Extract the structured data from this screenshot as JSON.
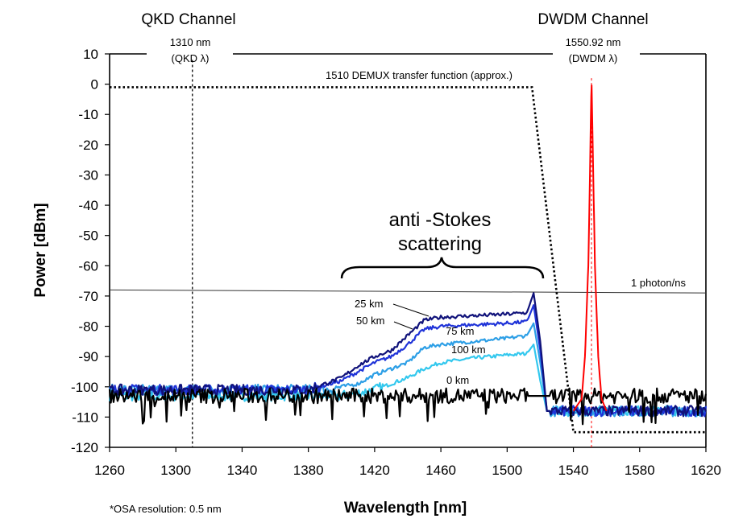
{
  "chart_data": {
    "type": "line",
    "xlabel": "Wavelength [nm]",
    "ylabel": "Power [dBm]",
    "xlim": [
      1260,
      1620
    ],
    "ylim": [
      -120,
      10
    ],
    "xticks": [
      1260,
      1300,
      1340,
      1380,
      1420,
      1460,
      1500,
      1540,
      1580,
      1620
    ],
    "yticks": [
      10,
      0,
      -10,
      -20,
      -30,
      -40,
      -50,
      -60,
      -70,
      -80,
      -90,
      -100,
      -110,
      -120
    ],
    "grid": false,
    "legend": "none",
    "channels": {
      "qkd_title": "QKD Channel",
      "qkd_wavelength": "1310 nm",
      "qkd_sub": "(QKD λ)",
      "qkd_line_x": 1310,
      "dwdm_title": "DWDM Channel",
      "dwdm_wavelength": "1550.92 nm",
      "dwdm_sub": "(DWDM λ)",
      "dwdm_line_x": 1550.92
    },
    "annotations": {
      "demux": "1510 DEMUX transfer function (approx.)",
      "antistokes_line1": "anti -Stokes",
      "antistokes_line2": "scattering",
      "photon": "1 photon/ns",
      "osa": "*OSA resolution: 0.5 nm"
    },
    "photon_level": {
      "x": [
        1260,
        1620
      ],
      "y": [
        -68,
        -69
      ]
    },
    "demux_curve": {
      "color": "#000000",
      "x": [
        1260,
        1515,
        1540,
        1620
      ],
      "y": [
        -1,
        -1,
        -115,
        -115
      ]
    },
    "series": [
      {
        "label": "25 km",
        "color": "#10127a",
        "x": [
          1260,
          1380,
          1400,
          1410,
          1420,
          1430,
          1440,
          1450,
          1460,
          1480,
          1500,
          1512,
          1516,
          1520,
          1524,
          1620
        ],
        "y": [
          -101,
          -101,
          -97,
          -93,
          -90,
          -88,
          -83,
          -78,
          -77,
          -76.5,
          -76,
          -75.5,
          -69,
          -85,
          -108,
          -108
        ]
      },
      {
        "label": "50 km",
        "color": "#1f33d8",
        "x": [
          1260,
          1380,
          1400,
          1410,
          1420,
          1430,
          1440,
          1450,
          1460,
          1480,
          1500,
          1512,
          1516,
          1520,
          1524,
          1620
        ],
        "y": [
          -101,
          -101,
          -98,
          -95,
          -92,
          -90,
          -86,
          -81,
          -80,
          -79.5,
          -79,
          -78.5,
          -73,
          -88,
          -108,
          -108
        ]
      },
      {
        "label": "75 km",
        "color": "#2d9fe6",
        "x": [
          1260,
          1390,
          1410,
          1420,
          1430,
          1440,
          1450,
          1460,
          1480,
          1500,
          1512,
          1516,
          1520,
          1524,
          1620
        ],
        "y": [
          -101,
          -101,
          -99,
          -96,
          -94,
          -92,
          -87,
          -86,
          -85,
          -84,
          -83,
          -79,
          -92,
          -108,
          -108
        ]
      },
      {
        "label": "100 km",
        "color": "#33c8ee",
        "x": [
          1260,
          1400,
          1420,
          1430,
          1440,
          1450,
          1460,
          1480,
          1500,
          1512,
          1516,
          1520,
          1524,
          1620
        ],
        "y": [
          -103,
          -103,
          -101,
          -99,
          -97,
          -94,
          -92,
          -90.5,
          -89.5,
          -89,
          -86,
          -98,
          -108,
          -108
        ]
      },
      {
        "label": "0 km",
        "color": "#000000",
        "x": [
          1260,
          1300,
          1340,
          1380,
          1420,
          1460,
          1500,
          1520,
          1620
        ],
        "y": [
          -103,
          -103,
          -103,
          -103,
          -103,
          -103,
          -103,
          -103,
          -103
        ]
      },
      {
        "label": "",
        "color": "#ff0000",
        "x": [
          1540,
          1545,
          1547,
          1549,
          1550,
          1550.92,
          1552,
          1553,
          1555,
          1557,
          1560
        ],
        "y": [
          -108,
          -104,
          -90,
          -60,
          -30,
          2,
          -30,
          -60,
          -90,
          -104,
          -108
        ]
      }
    ]
  }
}
